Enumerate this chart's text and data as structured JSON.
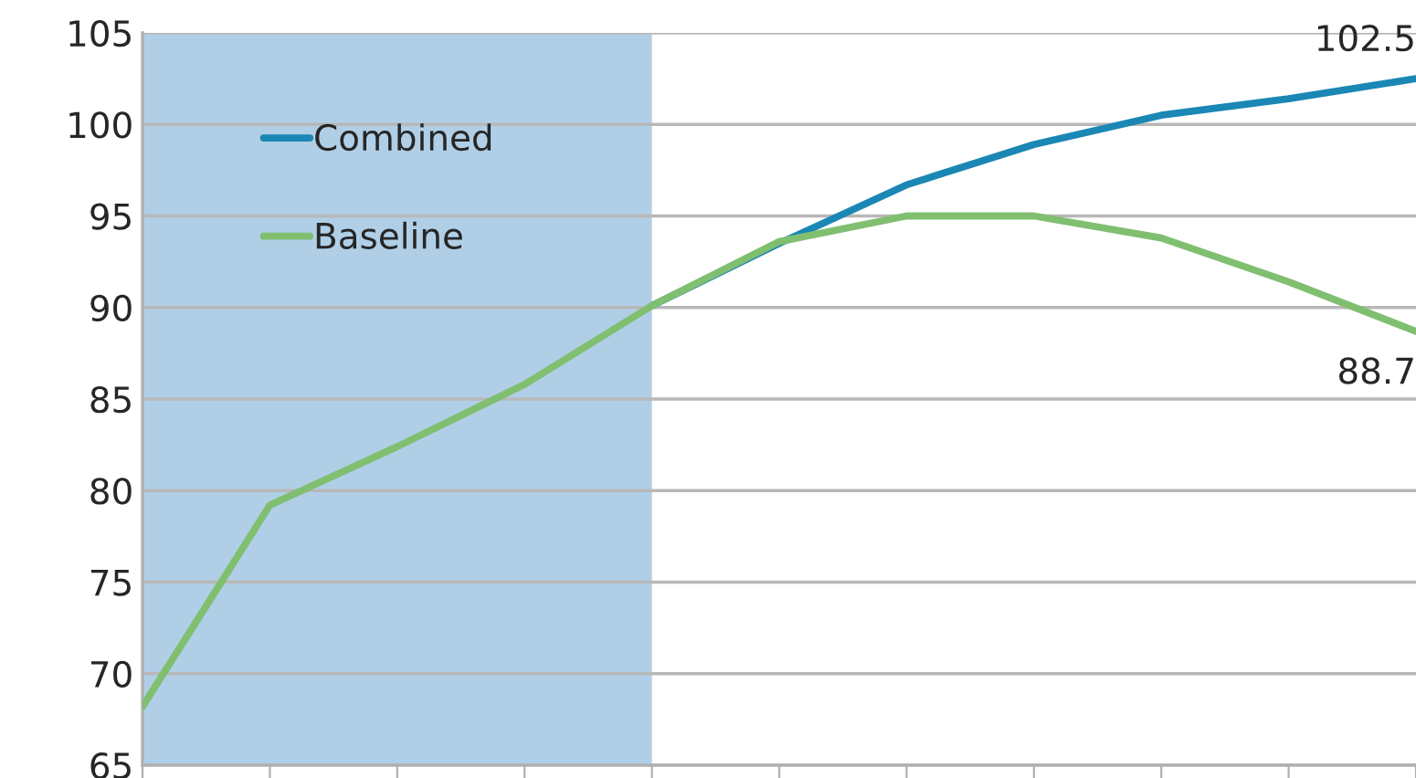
{
  "chart_data": {
    "type": "line",
    "categories": [
      null,
      null,
      null,
      null,
      null,
      null,
      null,
      null,
      null,
      null,
      null
    ],
    "series": [
      {
        "name": "Combined",
        "color": "#1a87b5",
        "values": [
          null,
          null,
          null,
          null,
          90.1,
          93.5,
          96.7,
          98.9,
          100.5,
          101.4,
          102.5
        ],
        "value_labels": [
          null,
          null,
          null,
          null,
          null,
          null,
          null,
          null,
          null,
          null,
          "102.5"
        ]
      },
      {
        "name": "Baseline",
        "color": "#80bf70",
        "values": [
          68.2,
          79.2,
          82.4,
          85.8,
          90.1,
          93.6,
          95.0,
          95.0,
          93.8,
          91.4,
          88.7
        ],
        "value_labels": [
          null,
          null,
          null,
          null,
          null,
          null,
          null,
          null,
          null,
          null,
          "88.7"
        ]
      }
    ],
    "ylim": [
      65,
      105
    ],
    "yticks": [
      65,
      70,
      75,
      80,
      85,
      90,
      95,
      100,
      105
    ],
    "grid": "y",
    "legend": "top left",
    "tick_labels": "y",
    "marker": "none",
    "line_style": "solid"
  }
}
